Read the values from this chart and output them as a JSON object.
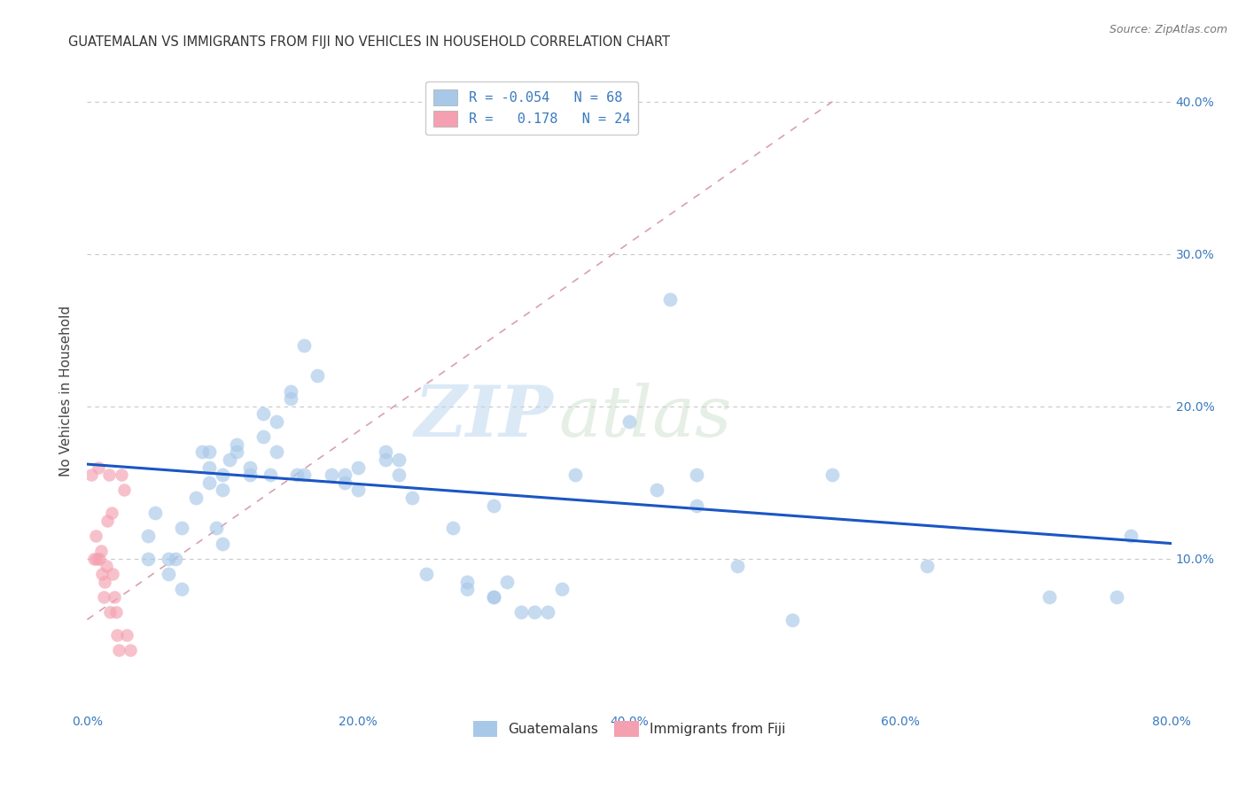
{
  "title": "GUATEMALAN VS IMMIGRANTS FROM FIJI NO VEHICLES IN HOUSEHOLD CORRELATION CHART",
  "source": "Source: ZipAtlas.com",
  "ylabel": "No Vehicles in Household",
  "xlim": [
    0.0,
    80.0
  ],
  "ylim": [
    0.0,
    42.0
  ],
  "xticks": [
    0.0,
    10.0,
    20.0,
    30.0,
    40.0,
    50.0,
    60.0,
    70.0,
    80.0
  ],
  "xticklabels": [
    "0.0%",
    "",
    "20.0%",
    "",
    "40.0%",
    "",
    "60.0%",
    "",
    "80.0%"
  ],
  "yticks_right": [
    10.0,
    20.0,
    30.0,
    40.0
  ],
  "ytick_right_labels": [
    "10.0%",
    "20.0%",
    "30.0%",
    "40.0%"
  ],
  "blue_color": "#a8c8e8",
  "pink_color": "#f4a0b0",
  "blue_line_color": "#1a56c4",
  "pink_line_color": "#d8a0b0",
  "watermark_zip": "ZIP",
  "watermark_atlas": "atlas",
  "legend_r_blue": "-0.054",
  "legend_n_blue": "68",
  "legend_r_pink": "0.178",
  "legend_n_pink": "24",
  "blue_x": [
    4.5,
    4.5,
    5.0,
    6.0,
    6.0,
    6.5,
    7.0,
    7.0,
    8.0,
    8.5,
    9.0,
    9.0,
    9.0,
    9.5,
    10.0,
    10.0,
    10.0,
    10.5,
    11.0,
    11.0,
    12.0,
    12.0,
    13.0,
    13.0,
    13.5,
    14.0,
    14.0,
    15.0,
    15.0,
    15.5,
    16.0,
    16.0,
    17.0,
    18.0,
    19.0,
    19.0,
    20.0,
    20.0,
    22.0,
    22.0,
    23.0,
    23.0,
    24.0,
    25.0,
    27.0,
    28.0,
    28.0,
    30.0,
    30.0,
    30.0,
    31.0,
    32.0,
    33.0,
    34.0,
    35.0,
    36.0,
    40.0,
    42.0,
    43.0,
    45.0,
    45.0,
    48.0,
    52.0,
    55.0,
    62.0,
    71.0,
    76.0,
    77.0
  ],
  "blue_y": [
    11.5,
    10.0,
    13.0,
    10.0,
    9.0,
    10.0,
    12.0,
    8.0,
    14.0,
    17.0,
    16.0,
    17.0,
    15.0,
    12.0,
    15.5,
    14.5,
    11.0,
    16.5,
    17.5,
    17.0,
    15.5,
    16.0,
    19.5,
    18.0,
    15.5,
    17.0,
    19.0,
    20.5,
    21.0,
    15.5,
    15.5,
    24.0,
    22.0,
    15.5,
    15.0,
    15.5,
    14.5,
    16.0,
    17.0,
    16.5,
    16.5,
    15.5,
    14.0,
    9.0,
    12.0,
    8.0,
    8.5,
    7.5,
    7.5,
    13.5,
    8.5,
    6.5,
    6.5,
    6.5,
    8.0,
    15.5,
    19.0,
    14.5,
    27.0,
    15.5,
    13.5,
    9.5,
    6.0,
    15.5,
    9.5,
    7.5,
    7.5,
    11.5
  ],
  "pink_x": [
    0.3,
    0.5,
    0.6,
    0.7,
    0.8,
    0.9,
    1.0,
    1.1,
    1.2,
    1.3,
    1.4,
    1.5,
    1.6,
    1.7,
    1.8,
    1.9,
    2.0,
    2.1,
    2.2,
    2.3,
    2.5,
    2.7,
    2.9,
    3.2
  ],
  "pink_y": [
    15.5,
    10.0,
    11.5,
    10.0,
    16.0,
    10.0,
    10.5,
    9.0,
    7.5,
    8.5,
    9.5,
    12.5,
    15.5,
    6.5,
    13.0,
    9.0,
    7.5,
    6.5,
    5.0,
    4.0,
    15.5,
    14.5,
    5.0,
    4.0
  ],
  "blue_scatter_size": 130,
  "pink_scatter_size": 110,
  "blue_scatter_alpha": 0.65,
  "pink_scatter_alpha": 0.65,
  "grid_color": "#c8c8c8",
  "background_color": "#ffffff",
  "title_fontsize": 10.5,
  "source_fontsize": 9,
  "legend_label_blue": "Guatemalans",
  "legend_label_pink": "Immigrants from Fiji",
  "blue_line_start_y": 16.2,
  "blue_line_end_y": 11.0,
  "pink_line_x1": 0.0,
  "pink_line_y1": 6.0,
  "pink_line_x2": 55.0,
  "pink_line_y2": 40.0
}
